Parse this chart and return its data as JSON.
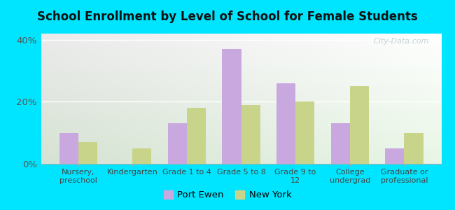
{
  "title": "School Enrollment by Level of School for Female Students",
  "categories": [
    "Nursery,\npreschool",
    "Kindergarten",
    "Grade 1 to 4",
    "Grade 5 to 8",
    "Grade 9 to\n12",
    "College\nundergrad",
    "Graduate or\nprofessional"
  ],
  "port_ewen": [
    10,
    0,
    13,
    37,
    26,
    13,
    5
  ],
  "new_york": [
    7,
    5,
    18,
    19,
    20,
    25,
    10
  ],
  "color_port_ewen": "#c9a8e0",
  "color_new_york": "#c8d48a",
  "background_outer": "#00e5ff",
  "ylabel_ticks": [
    0,
    20,
    40
  ],
  "ylabel_labels": [
    "0%",
    "20%",
    "40%"
  ],
  "ylim": [
    0,
    42
  ],
  "legend_port_ewen": "Port Ewen",
  "legend_new_york": "New York",
  "watermark": "City-Data.com"
}
